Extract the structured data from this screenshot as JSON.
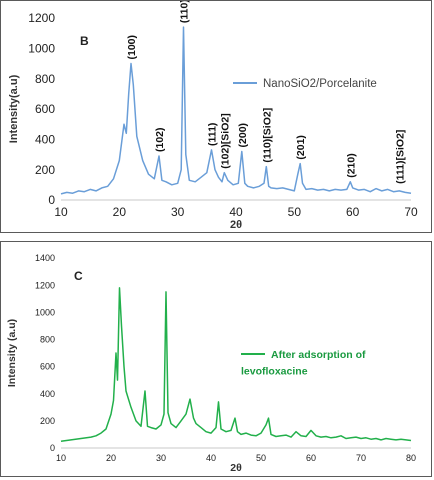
{
  "chart_data": [
    {
      "type": "line",
      "panel_letter": "B",
      "xlabel": "2θ",
      "ylabel": "Intensity(a.u)",
      "xlim": [
        10,
        70
      ],
      "ylim": [
        0,
        1200
      ],
      "x_ticks": [
        "10",
        "20",
        "30",
        "40",
        "50",
        "60",
        "70"
      ],
      "y_ticks": [
        "0",
        "200",
        "400",
        "600",
        "800",
        "1000",
        "1200"
      ],
      "grid": false,
      "legend_position": "upper-right",
      "series": [
        {
          "name": "NanoSiO2/Porcelanite",
          "color": "#6a9ed8",
          "points": [
            [
              10,
              40
            ],
            [
              11,
              50
            ],
            [
              12,
              45
            ],
            [
              13,
              60
            ],
            [
              14,
              55
            ],
            [
              15,
              70
            ],
            [
              16,
              60
            ],
            [
              17,
              80
            ],
            [
              18,
              90
            ],
            [
              19,
              140
            ],
            [
              20,
              260
            ],
            [
              20.8,
              500
            ],
            [
              21.2,
              440
            ],
            [
              21.6,
              700
            ],
            [
              22,
              900
            ],
            [
              22.4,
              760
            ],
            [
              23,
              420
            ],
            [
              24,
              260
            ],
            [
              25,
              170
            ],
            [
              26,
              140
            ],
            [
              26.8,
              290
            ],
            [
              27.3,
              130
            ],
            [
              28,
              120
            ],
            [
              29,
              100
            ],
            [
              30,
              110
            ],
            [
              30.6,
              200
            ],
            [
              31,
              1140
            ],
            [
              31.4,
              300
            ],
            [
              32,
              130
            ],
            [
              33,
              120
            ],
            [
              34,
              150
            ],
            [
              35,
              180
            ],
            [
              35.8,
              330
            ],
            [
              36.4,
              200
            ],
            [
              37,
              150
            ],
            [
              37.6,
              120
            ],
            [
              38,
              180
            ],
            [
              38.6,
              130
            ],
            [
              39.5,
              100
            ],
            [
              40.4,
              110
            ],
            [
              41,
              320
            ],
            [
              41.5,
              110
            ],
            [
              42,
              90
            ],
            [
              43,
              80
            ],
            [
              44,
              90
            ],
            [
              44.8,
              110
            ],
            [
              45.2,
              220
            ],
            [
              45.6,
              90
            ],
            [
              46,
              80
            ],
            [
              47,
              75
            ],
            [
              48,
              80
            ],
            [
              49,
              70
            ],
            [
              50,
              60
            ],
            [
              50.6,
              170
            ],
            [
              51,
              240
            ],
            [
              51.4,
              110
            ],
            [
              52,
              70
            ],
            [
              53,
              75
            ],
            [
              54,
              65
            ],
            [
              55,
              70
            ],
            [
              56,
              60
            ],
            [
              57,
              70
            ],
            [
              58,
              65
            ],
            [
              59,
              70
            ],
            [
              59.6,
              120
            ],
            [
              60,
              80
            ],
            [
              61,
              65
            ],
            [
              62,
              70
            ],
            [
              63,
              55
            ],
            [
              64,
              75
            ],
            [
              65,
              60
            ],
            [
              66,
              70
            ],
            [
              67,
              55
            ],
            [
              68,
              60
            ],
            [
              69,
              50
            ],
            [
              70,
              45
            ]
          ]
        }
      ],
      "annotations": [
        {
          "text": "(100)",
          "x": 22,
          "y": 900
        },
        {
          "text": "(110)",
          "x": 31,
          "y": 1140
        },
        {
          "text": "(102)",
          "x": 26.8,
          "y": 290
        },
        {
          "text": "(111)",
          "x": 35.8,
          "y": 330
        },
        {
          "text": "(102)[SiO2]",
          "x": 38,
          "y": 180
        },
        {
          "text": "(200)",
          "x": 41,
          "y": 320
        },
        {
          "text": "(110)[SiO2]",
          "x": 45.2,
          "y": 220
        },
        {
          "text": "(201)",
          "x": 51,
          "y": 240
        },
        {
          "text": "(210)",
          "x": 59.6,
          "y": 120
        },
        {
          "text": "(111)[SiO2]",
          "x": 68,
          "y": 80
        }
      ]
    },
    {
      "type": "line",
      "panel_letter": "C",
      "xlabel": "2θ",
      "ylabel": "Intensity (a.u)",
      "xlim": [
        10,
        80
      ],
      "ylim": [
        0,
        1400
      ],
      "x_ticks": [
        "10",
        "20",
        "30",
        "40",
        "50",
        "60",
        "70",
        "80"
      ],
      "y_ticks": [
        "0",
        "200",
        "400",
        "600",
        "800",
        "1000",
        "1200",
        "1400"
      ],
      "grid": false,
      "legend_position": "right",
      "series": [
        {
          "name": "After adsorption of levofloxacine",
          "color": "#22b04b",
          "points": [
            [
              10,
              50
            ],
            [
              12,
              60
            ],
            [
              14,
              70
            ],
            [
              16,
              80
            ],
            [
              17,
              90
            ],
            [
              18,
              110
            ],
            [
              19,
              140
            ],
            [
              20,
              250
            ],
            [
              20.5,
              350
            ],
            [
              21,
              700
            ],
            [
              21.3,
              500
            ],
            [
              21.7,
              1180
            ],
            [
              22.1,
              900
            ],
            [
              22.6,
              600
            ],
            [
              23,
              420
            ],
            [
              24,
              300
            ],
            [
              25,
              200
            ],
            [
              26,
              160
            ],
            [
              26.8,
              420
            ],
            [
              27.3,
              160
            ],
            [
              28,
              150
            ],
            [
              29,
              140
            ],
            [
              30,
              170
            ],
            [
              30.6,
              250
            ],
            [
              31,
              1150
            ],
            [
              31.4,
              260
            ],
            [
              32,
              180
            ],
            [
              33,
              150
            ],
            [
              34,
              200
            ],
            [
              35,
              250
            ],
            [
              35.8,
              360
            ],
            [
              36.5,
              220
            ],
            [
              37,
              180
            ],
            [
              38,
              150
            ],
            [
              39,
              120
            ],
            [
              40,
              110
            ],
            [
              41,
              150
            ],
            [
              41.5,
              340
            ],
            [
              42,
              140
            ],
            [
              43,
              120
            ],
            [
              44,
              130
            ],
            [
              44.8,
              220
            ],
            [
              45.3,
              120
            ],
            [
              46,
              100
            ],
            [
              47,
              110
            ],
            [
              48,
              95
            ],
            [
              49,
              90
            ],
            [
              50,
              110
            ],
            [
              51,
              170
            ],
            [
              51.5,
              220
            ],
            [
              52,
              100
            ],
            [
              53,
              85
            ],
            [
              54,
              90
            ],
            [
              55,
              95
            ],
            [
              56,
              80
            ],
            [
              57,
              120
            ],
            [
              58,
              90
            ],
            [
              59,
              85
            ],
            [
              60,
              130
            ],
            [
              61,
              90
            ],
            [
              62,
              80
            ],
            [
              63,
              85
            ],
            [
              64,
              75
            ],
            [
              65,
              80
            ],
            [
              66,
              90
            ],
            [
              67,
              70
            ],
            [
              68,
              75
            ],
            [
              69,
              80
            ],
            [
              70,
              70
            ],
            [
              71,
              75
            ],
            [
              72,
              65
            ],
            [
              73,
              70
            ],
            [
              74,
              60
            ],
            [
              75,
              70
            ],
            [
              76,
              65
            ],
            [
              77,
              60
            ],
            [
              78,
              65
            ],
            [
              79,
              60
            ],
            [
              80,
              55
            ]
          ]
        }
      ],
      "annotations": []
    }
  ]
}
